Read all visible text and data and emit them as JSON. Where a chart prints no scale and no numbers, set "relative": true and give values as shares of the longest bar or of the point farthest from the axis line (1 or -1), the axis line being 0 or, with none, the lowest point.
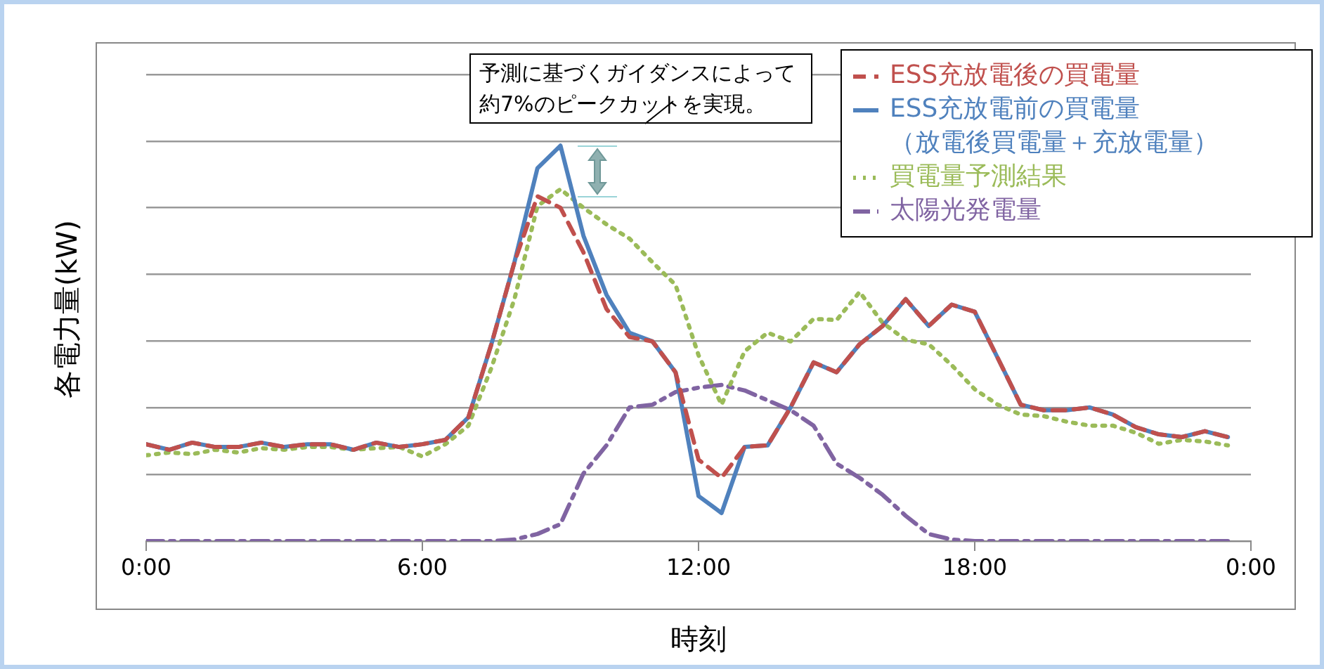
{
  "chart_data": {
    "type": "line",
    "relative": true,
    "xlabel": "時刻",
    "ylabel": "各電力量(kW)",
    "xlim": [
      0,
      24
    ],
    "xticks": [
      {
        "value": 0,
        "label": "0:00"
      },
      {
        "value": 6,
        "label": "6:00"
      },
      {
        "value": 12,
        "label": "12:00"
      },
      {
        "value": 18,
        "label": "18:00"
      },
      {
        "value": 24,
        "label": "0:00"
      }
    ],
    "grid": "y",
    "legend": "top right",
    "marker": "none",
    "annotations": [
      "予測に基づくガイダンスによって約7%のピークカットを実現。"
    ],
    "x": [
      0,
      0.5,
      1,
      1.5,
      2,
      2.5,
      3,
      3.5,
      4,
      4.5,
      5,
      5.5,
      6,
      6.5,
      7,
      7.5,
      8,
      8.5,
      9,
      9.5,
      10,
      10.5,
      11,
      11.5,
      12,
      12.5,
      13,
      13.5,
      14,
      14.5,
      15,
      15.5,
      16,
      16.5,
      17,
      17.5,
      18,
      18.5,
      19,
      19.5,
      20,
      20.5,
      21,
      21.5,
      22,
      22.5,
      23,
      23.5
    ],
    "series": [
      {
        "name": "ESS充放電後の買電量",
        "color": "#c0504d",
        "line_style": "dashed",
        "values": [
          0.245,
          0.231,
          0.249,
          0.238,
          0.238,
          0.249,
          0.238,
          0.245,
          0.245,
          0.231,
          0.249,
          0.238,
          0.245,
          0.256,
          0.313,
          0.498,
          0.705,
          0.872,
          0.843,
          0.73,
          0.587,
          0.516,
          0.505,
          0.427,
          0.206,
          0.16,
          0.238,
          0.242,
          0.338,
          0.452,
          0.427,
          0.498,
          0.544,
          0.612,
          0.544,
          0.598,
          0.58,
          0.463,
          0.345,
          0.331,
          0.331,
          0.338,
          0.32,
          0.288,
          0.27,
          0.263,
          0.278,
          0.263
        ]
      },
      {
        "name": "ESS充放電前の買電量（放電後買電量＋充放電量）",
        "color": "#4f81bd",
        "line_style": "solid",
        "values": [
          0.245,
          0.231,
          0.249,
          0.238,
          0.238,
          0.249,
          0.238,
          0.245,
          0.245,
          0.231,
          0.249,
          0.238,
          0.245,
          0.256,
          0.313,
          0.498,
          0.705,
          0.943,
          1,
          0.772,
          0.623,
          0.527,
          0.505,
          0.427,
          0.114,
          0.071,
          0.238,
          0.242,
          0.338,
          0.452,
          0.427,
          0.498,
          0.544,
          0.612,
          0.544,
          0.598,
          0.58,
          0.463,
          0.345,
          0.331,
          0.331,
          0.338,
          0.32,
          0.288,
          0.27,
          0.263,
          0.278,
          0.263
        ]
      },
      {
        "name": "買電量予測結果",
        "color": "#9bbb59",
        "line_style": "dotted",
        "values": [
          0.217,
          0.224,
          0.22,
          0.231,
          0.224,
          0.235,
          0.231,
          0.238,
          0.238,
          0.231,
          0.235,
          0.238,
          0.214,
          0.245,
          0.292,
          0.438,
          0.612,
          0.847,
          0.89,
          0.843,
          0.801,
          0.765,
          0.705,
          0.648,
          0.47,
          0.345,
          0.48,
          0.527,
          0.505,
          0.562,
          0.559,
          0.63,
          0.552,
          0.509,
          0.498,
          0.445,
          0.384,
          0.345,
          0.32,
          0.316,
          0.302,
          0.292,
          0.292,
          0.274,
          0.246,
          0.256,
          0.252,
          0.242
        ]
      },
      {
        "name": "太陽光発電量",
        "color": "#8064a2",
        "line_style": "dashdot",
        "values": [
          0,
          0,
          0,
          0,
          0,
          0,
          0,
          0,
          0,
          0,
          0,
          0,
          0,
          0,
          0,
          0,
          0.004,
          0.018,
          0.043,
          0.171,
          0.242,
          0.338,
          0.345,
          0.377,
          0.388,
          0.395,
          0.381,
          0.356,
          0.331,
          0.292,
          0.196,
          0.16,
          0.117,
          0.064,
          0.018,
          0.004,
          0,
          0,
          0,
          0,
          0,
          0,
          0,
          0,
          0,
          0,
          0,
          0
        ]
      }
    ]
  }
}
